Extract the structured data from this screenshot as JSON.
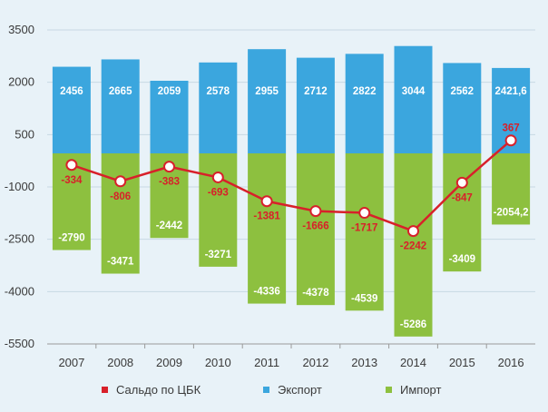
{
  "chart_data": {
    "type": "bar",
    "categories": [
      "2007",
      "2008",
      "2009",
      "2010",
      "2011",
      "2012",
      "2013",
      "2014",
      "2015",
      "2016"
    ],
    "ylim": [
      -5500,
      3500
    ],
    "yticks": [
      3500,
      2000,
      500,
      -1000,
      -2500,
      -4000,
      -5500
    ],
    "grid": true,
    "legend_position": "bottom",
    "series": [
      {
        "name": "Экспорт",
        "kind": "bar",
        "color": "#3ba6de",
        "values": [
          2456,
          2665,
          2059,
          2578,
          2955,
          2712,
          2822,
          3044,
          2562,
          2421.6
        ],
        "labels": [
          "2456",
          "2665",
          "2059",
          "2578",
          "2955",
          "2712",
          "2822",
          "3044",
          "2562",
          "2421,6"
        ]
      },
      {
        "name": "Импорт",
        "kind": "bar",
        "color": "#8dc03f",
        "values": [
          -2790,
          -3471,
          -2442,
          -3271,
          -4336,
          -4378,
          -4539,
          -5286,
          -3409,
          -2054.2
        ],
        "labels": [
          "-2790",
          "-3471",
          "-2442",
          "-3271",
          "-4336",
          "-4378",
          "-4539",
          "-5286",
          "-3409",
          "-2054,2"
        ]
      },
      {
        "name": "Сальдо по ЦБК",
        "kind": "line",
        "color": "#d8202a",
        "values": [
          -334,
          -806,
          -383,
          -693,
          -1381,
          -1666,
          -1717,
          -2242,
          -847,
          367
        ],
        "labels": [
          "-334",
          "-806",
          "-383",
          "-693",
          "-1381",
          "-1666",
          "-1717",
          "-2242",
          "-847",
          "367"
        ]
      }
    ]
  },
  "legend": [
    {
      "label": "Сальдо по ЦБК",
      "color": "#d8202a"
    },
    {
      "label": "Экспорт",
      "color": "#3ba6de"
    },
    {
      "label": "Импорт",
      "color": "#8dc03f"
    }
  ]
}
